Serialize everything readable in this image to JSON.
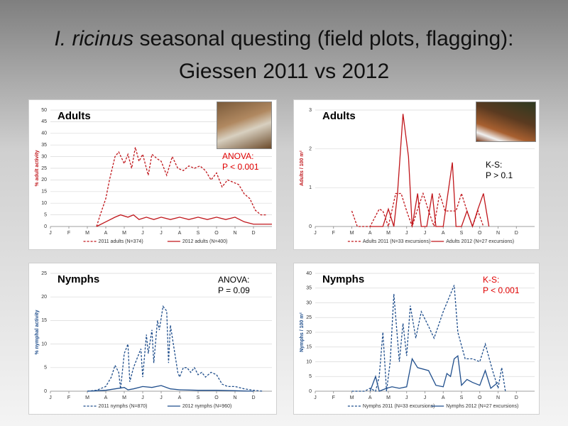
{
  "title": {
    "species": "I. ricinus",
    "text": "seasonal questing (field plots, flagging):",
    "subtitle": "Giessen 2011 vs 2012"
  },
  "chart_data": [
    {
      "type": "line",
      "label": "Adults",
      "ylabel": "% adult activity",
      "annotations": [
        "ANOVA:",
        "P < 0.001"
      ],
      "annotation_color": "#e00000",
      "xlim": [
        0,
        12
      ],
      "xticks": [
        {
          "value": 0,
          "label": "J"
        },
        {
          "value": 1,
          "label": "F"
        },
        {
          "value": 2,
          "label": "M"
        },
        {
          "value": 3,
          "label": "A"
        },
        {
          "value": 4,
          "label": "M"
        },
        {
          "value": 5,
          "label": "J"
        },
        {
          "value": 6,
          "label": "J"
        },
        {
          "value": 7,
          "label": "A"
        },
        {
          "value": 8,
          "label": "S"
        },
        {
          "value": 9,
          "label": "O"
        },
        {
          "value": 10,
          "label": "N"
        },
        {
          "value": 11,
          "label": "D"
        }
      ],
      "ylim": [
        0,
        50
      ],
      "yticks": [
        0,
        5,
        10,
        15,
        20,
        25,
        30,
        35,
        40,
        45,
        50
      ],
      "grid": true,
      "series": [
        {
          "name": "2011 adults (N=374)",
          "color": "#c0161b",
          "dashed": true,
          "x": [
            2.5,
            2.7,
            3.0,
            3.2,
            3.5,
            3.7,
            4.0,
            4.2,
            4.4,
            4.6,
            4.8,
            5.0,
            5.3,
            5.5,
            5.8,
            6.0,
            6.3,
            6.6,
            6.9,
            7.2,
            7.5,
            7.8,
            8.1,
            8.4,
            8.7,
            9.0,
            9.3,
            9.6,
            9.9,
            10.2,
            10.5,
            10.8,
            11.1,
            11.4,
            11.7
          ],
          "values": [
            0,
            5,
            12,
            20,
            30,
            32,
            27,
            31,
            25,
            34,
            28,
            31,
            22,
            31,
            29,
            28,
            22,
            30,
            25,
            24,
            26,
            25,
            26,
            24,
            20,
            23,
            17,
            20,
            19,
            18,
            14,
            12,
            7,
            5,
            5
          ]
        },
        {
          "name": "2012 adults (N=400)",
          "color": "#c0161b",
          "dashed": false,
          "x": [
            2.5,
            3.0,
            3.5,
            3.8,
            4.2,
            4.5,
            4.8,
            5.2,
            5.6,
            6.0,
            6.5,
            7.0,
            7.5,
            8.0,
            8.5,
            9.0,
            9.5,
            10.0,
            10.5,
            11.0,
            11.5,
            12
          ],
          "values": [
            0,
            2,
            4,
            5,
            4,
            5,
            3,
            4,
            3,
            4,
            3,
            4,
            3,
            4,
            3,
            4,
            3,
            4,
            2,
            1,
            1,
            1
          ]
        }
      ]
    },
    {
      "type": "line",
      "label": "Adults",
      "ylabel": "Adults / 100 m²",
      "annotations": [
        "K-S:",
        "P > 0.1"
      ],
      "annotation_color": "#000000",
      "xlim": [
        0,
        12
      ],
      "xticks": [
        {
          "value": 0,
          "label": "J"
        },
        {
          "value": 1,
          "label": "F"
        },
        {
          "value": 2,
          "label": "M"
        },
        {
          "value": 3,
          "label": "A"
        },
        {
          "value": 4,
          "label": "M"
        },
        {
          "value": 5,
          "label": "J"
        },
        {
          "value": 6,
          "label": "J"
        },
        {
          "value": 7,
          "label": "A"
        },
        {
          "value": 8,
          "label": "S"
        },
        {
          "value": 9,
          "label": "O"
        },
        {
          "value": 10,
          "label": "N"
        },
        {
          "value": 11,
          "label": "D"
        }
      ],
      "ylim": [
        0,
        3
      ],
      "yticks": [
        0,
        1,
        2,
        3
      ],
      "grid": true,
      "series": [
        {
          "name": "Adults 2011 (N=33 excursions)",
          "color": "#c0161b",
          "dashed": true,
          "x": [
            2,
            2.3,
            3.0,
            3.5,
            3.7,
            4.0,
            4.4,
            4.7,
            5.0,
            5.3,
            5.6,
            5.9,
            6.2,
            6.5,
            6.8,
            7.1,
            7.4,
            7.7,
            8.0,
            8.3,
            8.6,
            8.9,
            9.2
          ],
          "values": [
            0.4,
            0,
            0,
            0.45,
            0.4,
            0,
            0.85,
            0.85,
            0.4,
            0,
            0.45,
            0.85,
            0.4,
            0,
            0.85,
            0.4,
            0.4,
            0.4,
            0.85,
            0.4,
            0,
            0.4,
            0
          ]
        },
        {
          "name": "Adults 2012 (N=27 excursions)",
          "color": "#c0161b",
          "dashed": false,
          "x": [
            3.0,
            3.7,
            4.0,
            4.3,
            4.5,
            4.8,
            5.1,
            5.3,
            5.6,
            5.8,
            6.1,
            6.4,
            6.6,
            7.0,
            7.5,
            7.7,
            8.0,
            8.3,
            8.6,
            8.9,
            9.2,
            9.5
          ],
          "values": [
            0,
            0,
            0.45,
            0,
            0.85,
            2.9,
            1.8,
            0,
            0.85,
            0,
            0,
            0.85,
            0,
            0,
            1.65,
            0,
            0,
            0.4,
            0,
            0.45,
            0.85,
            0
          ]
        }
      ]
    },
    {
      "type": "line",
      "label": "Nymphs",
      "ylabel": "% nymphal activity",
      "annotations": [
        "ANOVA:",
        "P = 0.09"
      ],
      "annotation_color": "#000000",
      "xlim": [
        0,
        12
      ],
      "xticks": [
        {
          "value": 0,
          "label": "J"
        },
        {
          "value": 1,
          "label": "F"
        },
        {
          "value": 2,
          "label": "M"
        },
        {
          "value": 3,
          "label": "A"
        },
        {
          "value": 4,
          "label": "M"
        },
        {
          "value": 5,
          "label": "J"
        },
        {
          "value": 6,
          "label": "J"
        },
        {
          "value": 7,
          "label": "A"
        },
        {
          "value": 8,
          "label": "S"
        },
        {
          "value": 9,
          "label": "O"
        },
        {
          "value": 10,
          "label": "N"
        },
        {
          "value": 11,
          "label": "D"
        }
      ],
      "ylim": [
        0,
        25
      ],
      "yticks": [
        0,
        5,
        10,
        15,
        20,
        25
      ],
      "grid": true,
      "series": [
        {
          "name": "2011 nymphs (N=870)",
          "color": "#1f4e8c",
          "dashed": true,
          "x": [
            2.0,
            2.5,
            3.0,
            3.3,
            3.5,
            3.7,
            3.8,
            4.0,
            4.2,
            4.3,
            4.5,
            4.7,
            4.9,
            5.0,
            5.2,
            5.3,
            5.5,
            5.6,
            5.8,
            5.9,
            6.1,
            6.3,
            6.4,
            6.5,
            6.7,
            6.9,
            7.0,
            7.2,
            7.4,
            7.6,
            7.8,
            8.0,
            8.2,
            8.4,
            8.7,
            9.0,
            9.3,
            9.6,
            10.0,
            10.5,
            11,
            11.5
          ],
          "values": [
            0,
            0.2,
            1,
            3,
            5.5,
            4,
            0.5,
            8,
            10,
            2,
            5,
            7,
            9,
            3,
            12,
            8,
            13,
            6,
            15,
            13,
            18,
            17,
            6,
            14,
            9,
            4,
            3,
            5,
            5,
            4,
            5,
            3.5,
            4,
            3,
            4,
            3.5,
            1.5,
            1,
            1,
            0.5,
            0.2,
            0
          ]
        },
        {
          "name": "2012 nymphs (N=960)",
          "color": "#1f4e8c",
          "dashed": false,
          "x": [
            2.0,
            3.0,
            3.5,
            4.0,
            4.2,
            4.5,
            5.0,
            5.5,
            6.0,
            6.5,
            7.0,
            8.0,
            9.0,
            10.0,
            11.0
          ],
          "values": [
            0,
            0.2,
            0.5,
            0.8,
            0.3,
            0.5,
            1,
            0.8,
            1.2,
            0.5,
            0.3,
            0.2,
            0.2,
            0.1,
            0
          ]
        }
      ]
    },
    {
      "type": "line",
      "label": "Nymphs",
      "ylabel": "Nymphs / 100 m²",
      "annotations": [
        "K-S:",
        "P < 0.001"
      ],
      "annotation_color": "#e00000",
      "xlim": [
        0,
        12
      ],
      "xticks": [
        {
          "value": 0,
          "label": "J"
        },
        {
          "value": 1,
          "label": "F"
        },
        {
          "value": 2,
          "label": "M"
        },
        {
          "value": 3,
          "label": "A"
        },
        {
          "value": 4,
          "label": "M"
        },
        {
          "value": 5,
          "label": "J"
        },
        {
          "value": 6,
          "label": "J"
        },
        {
          "value": 7,
          "label": "A"
        },
        {
          "value": 8,
          "label": "S"
        },
        {
          "value": 9,
          "label": "O"
        },
        {
          "value": 10,
          "label": "N"
        },
        {
          "value": 11,
          "label": "D"
        }
      ],
      "ylim": [
        0,
        40
      ],
      "yticks": [
        0,
        5,
        10,
        15,
        20,
        25,
        30,
        35,
        40
      ],
      "grid": true,
      "series": [
        {
          "name": "Nymphs 2011 (N=33 excursions)",
          "color": "#1f4e8c",
          "dashed": true,
          "x": [
            2.0,
            2.7,
            3.0,
            3.3,
            3.5,
            3.7,
            3.9,
            4.1,
            4.3,
            4.6,
            4.8,
            5.0,
            5.2,
            5.5,
            5.8,
            6.2,
            6.5,
            7.0,
            7.4,
            7.6,
            7.8,
            8.2,
            8.6,
            9.0,
            9.3,
            9.7,
            10.0,
            10.2,
            10.4
          ],
          "values": [
            0,
            0,
            1,
            0,
            5,
            20,
            0,
            10,
            33,
            10,
            23,
            12,
            29,
            18,
            27,
            22,
            18,
            27,
            33,
            36,
            20,
            11,
            11,
            10,
            16,
            7,
            1,
            8,
            0
          ]
        },
        {
          "name": "Nymphs 2012 (N=27 excursions)",
          "color": "#1f4e8c",
          "dashed": false,
          "x": [
            3.0,
            3.3,
            3.5,
            3.9,
            4.2,
            4.6,
            5.0,
            5.3,
            5.6,
            6.2,
            6.6,
            7.0,
            7.2,
            7.4,
            7.6,
            7.8,
            8.0,
            8.3,
            8.6,
            9.0,
            9.3,
            9.6,
            10.0
          ],
          "values": [
            0,
            5,
            0,
            1,
            1.5,
            1,
            1.5,
            11,
            8,
            7,
            2,
            1.5,
            6,
            5,
            11,
            12,
            2,
            4,
            3,
            2,
            7,
            1,
            3
          ]
        }
      ]
    }
  ]
}
